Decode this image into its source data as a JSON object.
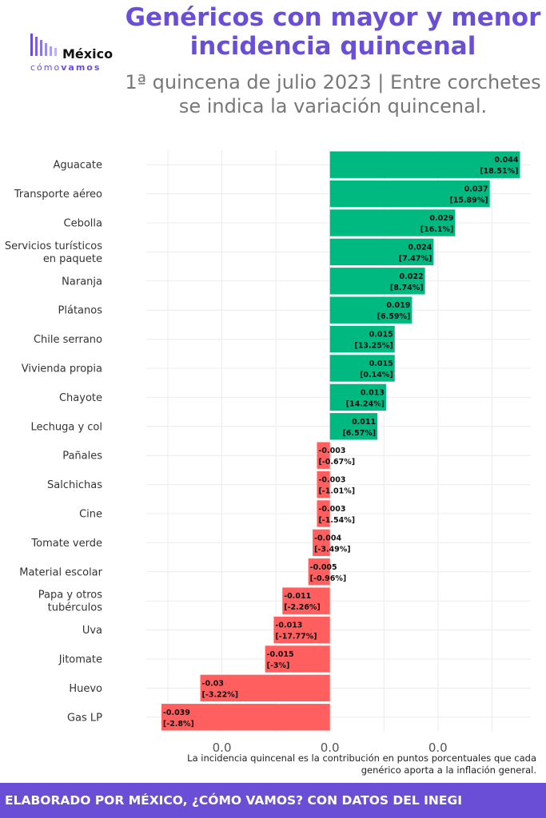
{
  "header": {
    "title": "Genéricos con mayor y menor incidencia quincenal",
    "subtitle": "1ª quincena de julio 2023 | Entre corchetes se indica la variación quincenal."
  },
  "logo": {
    "line1": "México",
    "line2_a": "cómo",
    "line2_b": "vamos"
  },
  "footnote": "La incidencia quincenal es la contribución en puntos porcentuales que cada genérico aporta a la inflación general.",
  "footer": "ELABORADO POR MÉXICO, ¿CÓMO VAMOS? CON DATOS DEL INEGI",
  "colors": {
    "positive": "#00b981",
    "negative": "#ff5f5f",
    "accent": "#6a4fd6"
  },
  "chart_data": {
    "type": "bar",
    "orientation": "horizontal",
    "categories": [
      "Aguacate",
      "Transporte aéreo",
      "Cebolla",
      "Servicios turísticos en paquete",
      "Naranja",
      "Plátanos",
      "Chile serrano",
      "Vivienda propia",
      "Chayote",
      "Lechuga y col",
      "Pañales",
      "Salchichas",
      "Cine",
      "Tomate verde",
      "Material escolar",
      "Papa y otros tubérculos",
      "Uva",
      "Jitomate",
      "Huevo",
      "Gas LP"
    ],
    "values": [
      0.044,
      0.037,
      0.029,
      0.024,
      0.022,
      0.019,
      0.015,
      0.015,
      0.013,
      0.011,
      -0.003,
      -0.003,
      -0.003,
      -0.004,
      -0.005,
      -0.011,
      -0.013,
      -0.015,
      -0.03,
      -0.039
    ],
    "value_labels": [
      "0.044",
      "0.037",
      "0.029",
      "0.024",
      "0.022",
      "0.019",
      "0.015",
      "0.015",
      "0.013",
      "0.011",
      "-0.003",
      "-0.003",
      "-0.003",
      "-0.004",
      "-0.005",
      "-0.011",
      "-0.013",
      "-0.015",
      "-0.03",
      "-0.039"
    ],
    "variation_labels": [
      "[18.51%]",
      "[15.89%]",
      "[16.1%]",
      "[7.47%]",
      "[8.74%]",
      "[6.59%]",
      "[13.25%]",
      "[0.14%]",
      "[14.24%]",
      "[6.57%]",
      "[-0.67%]",
      "[-1.01%]",
      "[-1.54%]",
      "[-3.49%]",
      "[-0.96%]",
      "[-2.26%]",
      "[-17.77%]",
      "[-3%]",
      "[-3.22%]",
      "[-2.8%]"
    ],
    "x_ticks": [
      -0.025,
      0.0,
      0.025
    ],
    "x_tick_labels": [
      "0.0",
      "0.0",
      "0.0"
    ],
    "xlim": [
      -0.0425,
      0.0465
    ],
    "grid": true
  }
}
